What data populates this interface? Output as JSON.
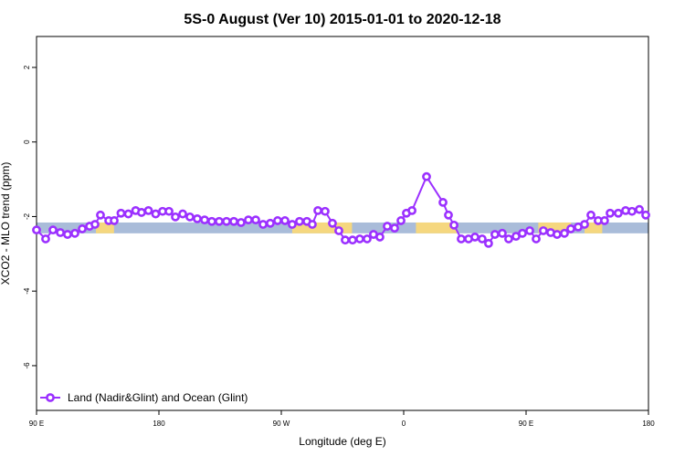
{
  "chart_data": {
    "type": "line",
    "title": "5S-0 August (Ver 10)   2015-01-01 to 2020-12-18",
    "xlabel": "Longitude (deg E)",
    "ylabel": "XCO2 - MLO trend (ppm)",
    "xlim": [
      90,
      540
    ],
    "ylim": [
      -7.2,
      2.83
    ],
    "xticks": [
      {
        "value": 90,
        "label": "90 E"
      },
      180,
      {
        "value": 270,
        "label": "90 W"
      },
      {
        "value": 360,
        "label": "0"
      },
      {
        "value": 450,
        "label": "90 E"
      },
      {
        "value": 540,
        "label": "180"
      }
    ],
    "yticks": [
      2,
      0,
      -2,
      -4,
      -6
    ],
    "legend": "bottom-left",
    "band": {
      "range": [
        -2.45,
        -2.16
      ],
      "color": "#a9bcd9"
    },
    "land": {
      "color": "#f5d77f",
      "spans": [
        [
          133.7,
          147
        ],
        [
          278,
          322
        ],
        [
          369,
          399
        ],
        [
          459,
          483
        ],
        [
          493,
          506
        ]
      ]
    },
    "series": [
      {
        "name": "Land (Nadir&Glint) and Ocean (Glint)",
        "color": "#9b30ff",
        "x": [
          90,
          96.7,
          102.1,
          107.5,
          112.8,
          118.2,
          123.6,
          129,
          133,
          137,
          143.1,
          147.1,
          152.1,
          157.5,
          162.9,
          167.2,
          172.3,
          177.6,
          182.7,
          187.4,
          192.1,
          197.5,
          202.8,
          208.2,
          213.6,
          218.9,
          224.3,
          229.7,
          235.1,
          240.4,
          245.8,
          251.2,
          256.6,
          261.9,
          267.3,
          272.7,
          278,
          283.4,
          288.8,
          292.8,
          296.9,
          302.2,
          307.6,
          312.3,
          317,
          322.4,
          327.7,
          333.1,
          337.8,
          342.5,
          347.9,
          353.3,
          358,
          362,
          366.1,
          376.8,
          388.9,
          392.9,
          397,
          402.3,
          407.7,
          412.4,
          417.7,
          422.4,
          427.1,
          432.5,
          437.2,
          442.6,
          447.3,
          452.7,
          457.4,
          462.7,
          468.1,
          472.8,
          478.2,
          482.9,
          488.3,
          493,
          497.7,
          503,
          507.7,
          511.8,
          517.8,
          523.2,
          527.9,
          533.3,
          538
        ],
        "values": [
          -2.36,
          -2.6,
          -2.36,
          -2.43,
          -2.48,
          -2.45,
          -2.33,
          -2.26,
          -2.21,
          -1.96,
          -2.11,
          -2.11,
          -1.91,
          -1.93,
          -1.84,
          -1.89,
          -1.84,
          -1.93,
          -1.86,
          -1.86,
          -2.01,
          -1.93,
          -2.01,
          -2.06,
          -2.09,
          -2.13,
          -2.13,
          -2.13,
          -2.13,
          -2.16,
          -2.09,
          -2.09,
          -2.21,
          -2.18,
          -2.11,
          -2.11,
          -2.21,
          -2.13,
          -2.13,
          -2.21,
          -1.84,
          -1.86,
          -2.18,
          -2.38,
          -2.63,
          -2.63,
          -2.6,
          -2.6,
          -2.48,
          -2.55,
          -2.26,
          -2.31,
          -2.11,
          -1.91,
          -1.84,
          -0.93,
          -1.62,
          -1.96,
          -2.23,
          -2.6,
          -2.6,
          -2.55,
          -2.6,
          -2.72,
          -2.48,
          -2.45,
          -2.6,
          -2.53,
          -2.45,
          -2.38,
          -2.6,
          -2.38,
          -2.43,
          -2.48,
          -2.45,
          -2.33,
          -2.28,
          -2.21,
          -1.96,
          -2.11,
          -2.11,
          -1.91,
          -1.91,
          -1.84,
          -1.86,
          -1.81,
          -1.96
        ]
      }
    ]
  }
}
